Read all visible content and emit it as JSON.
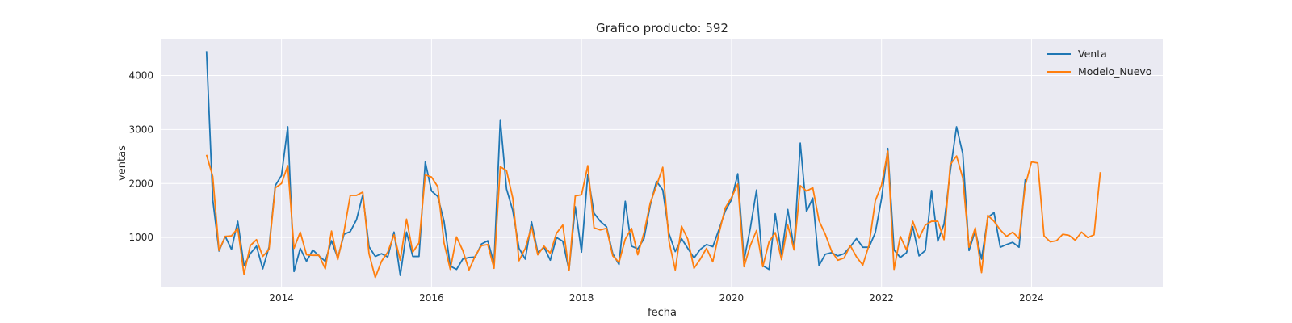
{
  "chart_data": {
    "type": "line",
    "title": "Grafico producto: 592",
    "xlabel": "fecha",
    "ylabel": "ventas",
    "x_start": "2013-01",
    "x_frequency": "monthly",
    "xlim": [
      2012.4,
      2025.75
    ],
    "ylim": [
      90,
      4680
    ],
    "x_ticks": [
      {
        "value": 2014,
        "label": "2014"
      },
      {
        "value": 2016,
        "label": "2016"
      },
      {
        "value": 2018,
        "label": "2018"
      },
      {
        "value": 2020,
        "label": "2020"
      },
      {
        "value": 2022,
        "label": "2022"
      },
      {
        "value": 2024,
        "label": "2024"
      }
    ],
    "y_ticks": [
      {
        "value": 1000,
        "label": "1000"
      },
      {
        "value": 2000,
        "label": "2000"
      },
      {
        "value": 3000,
        "label": "3000"
      },
      {
        "value": 4000,
        "label": "4000"
      }
    ],
    "grid": true,
    "background": "#eaeaf2",
    "legend_position": "top-right",
    "series": [
      {
        "name": "Venta",
        "color": "#1f77b4",
        "values": [
          4450,
          1700,
          750,
          1020,
          780,
          1300,
          480,
          700,
          840,
          420,
          820,
          1960,
          2150,
          3050,
          370,
          800,
          560,
          770,
          660,
          560,
          940,
          620,
          1060,
          1110,
          1330,
          1790,
          830,
          650,
          700,
          640,
          1100,
          300,
          1100,
          650,
          650,
          2400,
          1860,
          1760,
          1300,
          470,
          410,
          600,
          630,
          640,
          880,
          940,
          520,
          3180,
          1900,
          1500,
          800,
          600,
          1290,
          720,
          820,
          580,
          1000,
          930,
          400,
          1570,
          730,
          2170,
          1450,
          1300,
          1200,
          700,
          500,
          1670,
          840,
          790,
          980,
          1600,
          2040,
          1880,
          1070,
          740,
          980,
          800,
          620,
          780,
          870,
          830,
          1150,
          1490,
          1700,
          2180,
          580,
          1170,
          1880,
          480,
          410,
          1440,
          680,
          1520,
          800,
          2750,
          1480,
          1730,
          480,
          690,
          720,
          660,
          700,
          830,
          980,
          820,
          820,
          1090,
          1720,
          2650,
          770,
          630,
          720,
          1200,
          660,
          760,
          1870,
          930,
          1250,
          2230,
          3050,
          2550,
          760,
          1130,
          600,
          1370,
          1460,
          820,
          870,
          910,
          820,
          2080
        ]
      },
      {
        "name": "Modelo_Nuevo",
        "color": "#ff7f0e",
        "values": [
          2530,
          2130,
          760,
          1020,
          1030,
          1170,
          320,
          850,
          960,
          650,
          780,
          1920,
          2000,
          2330,
          800,
          1100,
          680,
          670,
          670,
          420,
          1120,
          590,
          1110,
          1780,
          1780,
          1840,
          700,
          260,
          560,
          730,
          1050,
          580,
          1340,
          730,
          900,
          2160,
          2120,
          1940,
          900,
          410,
          1010,
          760,
          400,
          660,
          850,
          870,
          430,
          2310,
          2240,
          1730,
          570,
          800,
          1200,
          680,
          840,
          710,
          1080,
          1230,
          390,
          1770,
          1790,
          2330,
          1180,
          1140,
          1170,
          660,
          540,
          970,
          1170,
          680,
          1090,
          1640,
          1960,
          2300,
          930,
          400,
          1210,
          970,
          430,
          600,
          800,
          550,
          1080,
          1550,
          1740,
          1990,
          460,
          850,
          1130,
          460,
          920,
          1090,
          590,
          1230,
          770,
          1960,
          1860,
          1920,
          1310,
          1060,
          750,
          580,
          620,
          850,
          640,
          490,
          860,
          1680,
          1970,
          2600,
          410,
          1020,
          770,
          1300,
          990,
          1230,
          1300,
          1300,
          960,
          2350,
          2510,
          2100,
          820,
          1180,
          350,
          1410,
          1300,
          1140,
          1020,
          1100,
          980,
          1970,
          2400,
          2380,
          1030,
          920,
          940,
          1060,
          1040,
          950,
          1100,
          1000,
          1050,
          2210
        ]
      }
    ]
  }
}
